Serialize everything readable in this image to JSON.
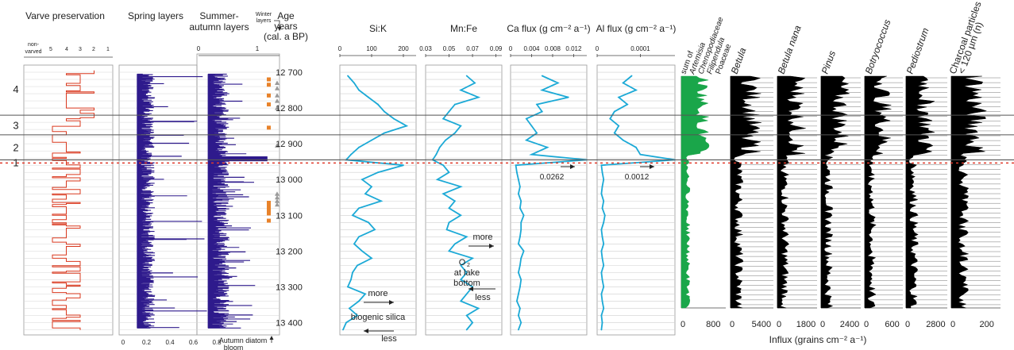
{
  "chart_data": {
    "type": "line",
    "x_axis_unit": "",
    "age_axis": {
      "title_lines": [
        "Age",
        "years",
        "(cal. a BP)"
      ],
      "ticks": [
        12700,
        12800,
        12900,
        13000,
        13100,
        13200,
        13300,
        13400
      ],
      "tick_labels": [
        "12 700",
        "12 800",
        "12 900",
        "13 000",
        "13 100",
        "13 200",
        "13 300",
        "13 400"
      ],
      "range": [
        12680,
        13430
      ]
    },
    "zones": {
      "labels": [
        "4",
        "3",
        "2",
        "1"
      ],
      "boundaries": [
        12820,
        12875,
        12945
      ]
    },
    "panels": {
      "varve": {
        "title": "Varve preservation",
        "tick_labels": [
          "non-",
          "varved",
          "5",
          "4",
          "3",
          "2",
          "1"
        ],
        "color": "#d9381e"
      },
      "spring": {
        "title": "Spring layers",
        "tick_labels": [
          "0",
          "0.2",
          "0.4",
          "0.6",
          "0.8"
        ],
        "color": "#2e1a8c"
      },
      "summer": {
        "title_lines": [
          "Summer-",
          "autumn layers"
        ],
        "tick_labels": [
          "0",
          "1"
        ],
        "winter_label_lines": [
          "Winter",
          "layers"
        ],
        "bottom_label_lines": [
          "Autumn diatom",
          "bloom"
        ],
        "color": "#2e1a8c",
        "marker_orange": "#e8822a",
        "marker_grey": "#9a9a9a"
      },
      "sik": {
        "title": "Si:K",
        "tick_values": [
          0,
          100,
          200
        ],
        "tick_labels": [
          "0",
          "100",
          "200"
        ],
        "range": [
          0,
          240
        ],
        "color": "#1ba9d6",
        "annot_more": "more",
        "annot_bio": "biogenic silica",
        "annot_less": "less",
        "depths": [
          12710,
          12730,
          12750,
          12770,
          12790,
          12810,
          12830,
          12850,
          12870,
          12890,
          12910,
          12930,
          12945,
          12960,
          12980,
          13000,
          13020,
          13040,
          13060,
          13080,
          13100,
          13120,
          13140,
          13160,
          13180,
          13200,
          13220,
          13240,
          13260,
          13280,
          13300,
          13320,
          13340,
          13360,
          13380,
          13400,
          13420
        ],
        "values": [
          25,
          45,
          60,
          90,
          120,
          140,
          170,
          210,
          140,
          100,
          60,
          35,
          20,
          200,
          120,
          70,
          100,
          80,
          130,
          60,
          40,
          90,
          110,
          60,
          45,
          70,
          100,
          55,
          40,
          35,
          25,
          80,
          60,
          30,
          55,
          20,
          10
        ]
      },
      "mnfe": {
        "title": "Mn:Fe",
        "tick_values": [
          0.03,
          0.05,
          0.07,
          0.09
        ],
        "tick_labels": [
          "0.03",
          "0.05",
          "0.07",
          "0.09"
        ],
        "range": [
          0.03,
          0.095
        ],
        "color": "#1ba9d6",
        "annot_more": "more",
        "annot_o2_lines": [
          "O",
          "at lake",
          "bottom"
        ],
        "annot_less": "less",
        "depths": [
          12710,
          12730,
          12750,
          12770,
          12790,
          12810,
          12830,
          12850,
          12870,
          12890,
          12910,
          12930,
          12945,
          12960,
          12980,
          13000,
          13020,
          13040,
          13060,
          13080,
          13100,
          13120,
          13140,
          13160,
          13180,
          13200,
          13220,
          13240,
          13260,
          13280,
          13300,
          13320,
          13340,
          13360,
          13380,
          13400,
          13420
        ],
        "values": [
          0.065,
          0.072,
          0.06,
          0.075,
          0.055,
          0.05,
          0.045,
          0.06,
          0.055,
          0.047,
          0.042,
          0.039,
          0.036,
          0.045,
          0.05,
          0.04,
          0.06,
          0.045,
          0.055,
          0.05,
          0.06,
          0.05,
          0.048,
          0.065,
          0.055,
          0.05,
          0.07,
          0.06,
          0.065,
          0.06,
          0.07,
          0.065,
          0.06,
          0.075,
          0.065,
          0.07,
          0.065
        ]
      },
      "caflux": {
        "title": "Ca flux (g cm⁻² a⁻¹)",
        "tick_values": [
          0,
          0.004,
          0.008,
          0.012
        ],
        "tick_labels": [
          "0",
          "0.004",
          "0.008",
          "0.012"
        ],
        "range": [
          0,
          0.0145
        ],
        "color": "#1ba9d6",
        "annot_value": "0.0262",
        "depths": [
          12710,
          12730,
          12750,
          12770,
          12790,
          12810,
          12830,
          12850,
          12870,
          12890,
          12910,
          12930,
          12945,
          12960,
          12980,
          13000,
          13020,
          13040,
          13060,
          13080,
          13100,
          13120,
          13140,
          13160,
          13180,
          13200,
          13220,
          13240,
          13260,
          13280,
          13300,
          13320,
          13340,
          13360,
          13380,
          13400,
          13420
        ],
        "values": [
          0.006,
          0.009,
          0.006,
          0.011,
          0.005,
          0.006,
          0.003,
          0.004,
          0.005,
          0.003,
          0.007,
          0.004,
          0.0145,
          0.001,
          0.0012,
          0.0015,
          0.0018,
          0.0015,
          0.002,
          0.0018,
          0.0025,
          0.002,
          0.002,
          0.0018,
          0.0015,
          0.0025,
          0.002,
          0.0018,
          0.0015,
          0.002,
          0.0018,
          0.0015,
          0.0012,
          0.0018,
          0.0015,
          0.002,
          0.0015
        ]
      },
      "alflux": {
        "title": "Al flux (g cm⁻² a⁻¹)",
        "tick_values": [
          0,
          0.0001
        ],
        "tick_labels": [
          "0",
          "0.0001"
        ],
        "range": [
          0,
          0.00018
        ],
        "color": "#1ba9d6",
        "annot_value": "0.0012",
        "depths": [
          12710,
          12730,
          12750,
          12770,
          12790,
          12810,
          12830,
          12850,
          12870,
          12890,
          12910,
          12930,
          12945,
          12960,
          12980,
          13000,
          13020,
          13040,
          13060,
          13080,
          13100,
          13120,
          13140,
          13160,
          13180,
          13200,
          13220,
          13240,
          13260,
          13280,
          13300,
          13320,
          13340,
          13360,
          13380,
          13400,
          13420
        ],
        "values": [
          8e-05,
          6e-05,
          9e-05,
          5e-05,
          7e-05,
          4e-05,
          3e-05,
          5e-05,
          4e-05,
          6e-05,
          9e-05,
          0.0001,
          0.00018,
          1e-05,
          1.2e-05,
          1.5e-05,
          1.2e-05,
          1e-05,
          1.5e-05,
          1.2e-05,
          1.8e-05,
          1.5e-05,
          1e-05,
          1.2e-05,
          1.5e-05,
          1e-05,
          1.2e-05,
          1.5e-05,
          1e-05,
          1.2e-05,
          1.5e-05,
          1e-05,
          1.2e-05,
          1.5e-05,
          1e-05,
          1.2e-05,
          1e-05
        ]
      },
      "pollen": [
        {
          "title_lines": [
            "sum of",
            "Artemisia",
            "Chenopodiaceae",
            "Filipendula",
            "Poaceae"
          ],
          "tick_labels": [
            "0",
            "800"
          ],
          "max": 1000,
          "color": "#1aa64a"
        },
        {
          "title": "Betula",
          "tick_labels": [
            "0",
            "5400"
          ],
          "max": 6500,
          "color": "#000000"
        },
        {
          "title": "Betula nana",
          "tick_labels": [
            "0",
            "1800"
          ],
          "max": 2200,
          "color": "#000000"
        },
        {
          "title": "Pinus",
          "tick_labels": [
            "0",
            "2400"
          ],
          "max": 2900,
          "color": "#000000"
        },
        {
          "title": "Botryococcus",
          "tick_labels": [
            "0",
            "600"
          ],
          "max": 800,
          "color": "#000000"
        },
        {
          "title": "Pediostrum",
          "tick_labels": [
            "0",
            "2800"
          ],
          "max": 3300,
          "color": "#000000"
        },
        {
          "title_lines": [
            "Charcoal particles",
            "< 120 µm (n)"
          ],
          "tick_labels": [
            "0",
            "200"
          ],
          "max": 260,
          "color": "#000000"
        }
      ],
      "influx_label": "Influx (grains cm⁻² a⁻¹)"
    }
  }
}
